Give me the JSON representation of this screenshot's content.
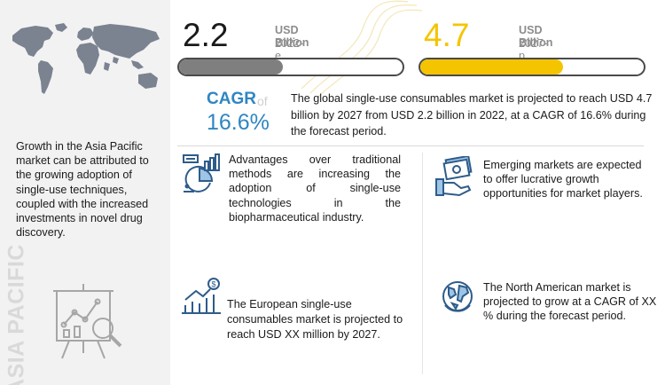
{
  "colors": {
    "accent_blue": "#2e86c1",
    "bar_dark": "#7f7f7f",
    "bar_yellow": "#f5c400",
    "vertical_label": "#d9d9d9"
  },
  "left_panel": {
    "map_icon": "world-map-icon",
    "text": "Growth in the Asia Pacific market can be attributed to the growing adoption of single-use techniques, coupled with the increased investments in novel drug discovery.",
    "vertical_label": "ASIA PACIFIC",
    "chart_icon": "presentation-chart-icon"
  },
  "stats": {
    "current": {
      "value": "2.2",
      "unit": "USD Billion",
      "year": "2022-e",
      "bar_fill_fraction": 0.465
    },
    "projected": {
      "value": "4.7",
      "unit": "USD Billion",
      "year": "2027-p",
      "bar_fill_fraction": 0.64
    }
  },
  "cagr": {
    "label": "CAGR",
    "of": "of",
    "value": "16.6%",
    "summary": "The global single-use consumables market is projected to reach USD 4.7 billion by 2027 from USD 2.2 billion in 2022, at a CAGR of 16.6% during the forecast period."
  },
  "cards": [
    {
      "icon": "analytics-icon",
      "text": "Advantages over traditional methods are increasing the adoption of single-use technologies in the biopharmaceutical industry."
    },
    {
      "icon": "money-hand-icon",
      "text": "Emerging markets are expected to offer lucrative growth opportunities for market players."
    },
    {
      "icon": "growth-chart-icon",
      "text": "The European single-use consumables market is projected to reach USD XX million by 2027."
    },
    {
      "icon": "globe-icon",
      "text": "The North American market is projected to grow at a CAGR of XX % during the forecast period."
    }
  ]
}
